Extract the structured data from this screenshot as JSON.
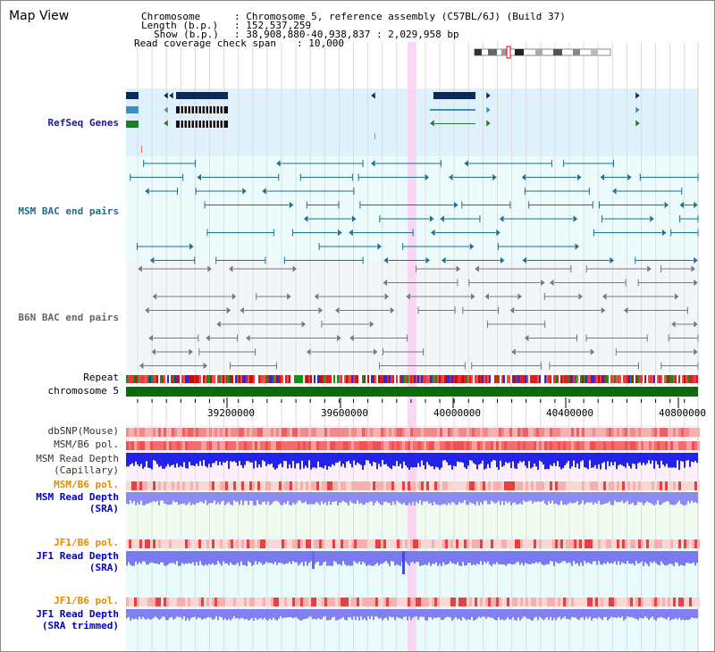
{
  "title": "Map View",
  "header": {
    "chromosome_key": "Chromosome",
    "chromosome_val": ": Chromosome 5, reference assembly (C57BL/6J) (Build 37)",
    "length_key": "Length (b.p.)",
    "length_val": ": 152,537,259",
    "show_key": "Show (b.p.)",
    "show_val": ": 38,908,880-40,938,837 : 2,029,958 bp",
    "coverage_key": "Read coverage check span",
    "coverage_val": ": 10,000"
  },
  "tracks": {
    "refseq": "RefSeq Genes",
    "msm_bac": "MSM BAC end pairs",
    "b6n_bac": "B6N BAC end pairs",
    "repeat": "Repeat",
    "chromosome": "chromosome 5",
    "dbsnp": "dbSNP(Mouse)",
    "msm_b6_pol": "MSM/B6 pol.",
    "msm_rd_cap_1": "MSM Read Depth",
    "msm_rd_cap_2": "(Capillary)",
    "msm_b6_pol2": "MSM/B6 pol.",
    "msm_rd_sra_1": "MSM Read Depth",
    "msm_rd_sra_2": "(SRA)",
    "jf1_b6_pol": "JF1/B6 pol.",
    "jf1_rd_sra_1": "JF1 Read Depth",
    "jf1_rd_sra_2": "(SRA)",
    "jf1_b6_pol2": "JF1/B6 pol.",
    "jf1_rd_tr_1": "JF1 Read Depth",
    "jf1_rd_tr_2": "(SRA trimmed)"
  },
  "axis": {
    "ticks": [
      "39200000",
      "39600000",
      "40000000",
      "40400000",
      "40800000"
    ]
  },
  "colors": {
    "refseq_bg": "#dff2fb",
    "msm_bac": "#1e6e8c",
    "b6n_bac": "#777777",
    "chromosome": "#0b6b0b",
    "highlight": "#f9d3f3",
    "refseq_label": "#1a1aa0",
    "msm_label": "#1e6e8c",
    "b6n_label": "#666666",
    "pol_label": "#e08a00",
    "depth_label": "#0000c0"
  }
}
